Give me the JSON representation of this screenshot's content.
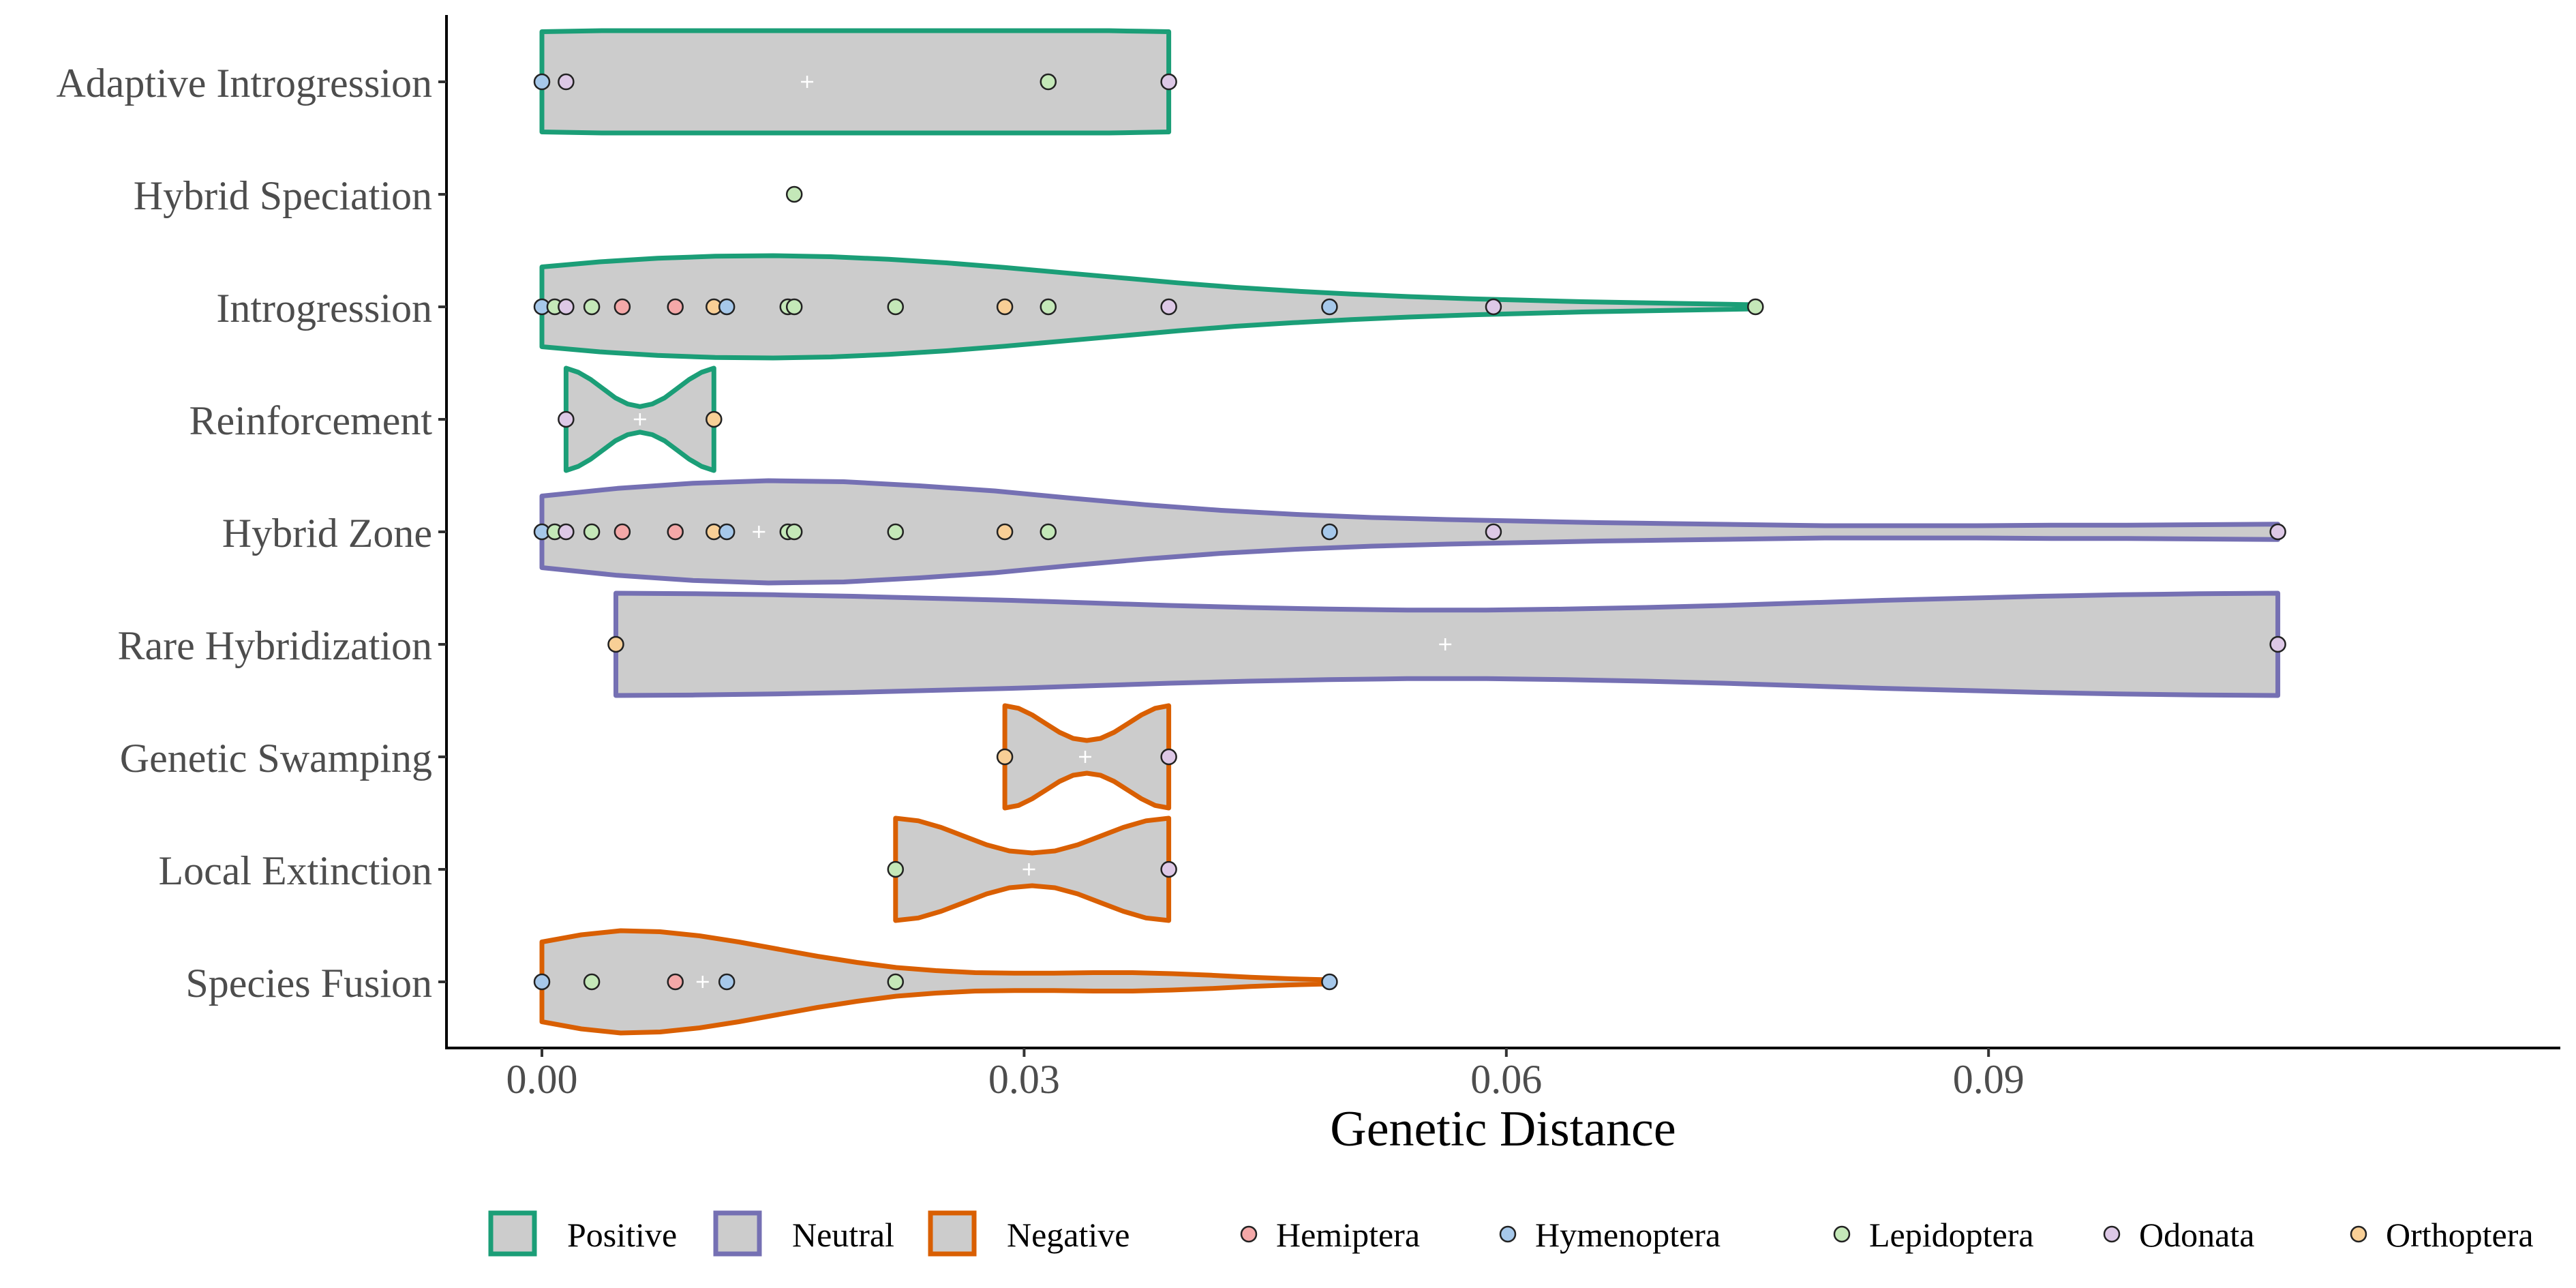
{
  "chart_data": {
    "type": "violin",
    "title": "",
    "xlabel": "Genetic Distance",
    "ylabel": "",
    "xlim": [
      -0.0055,
      0.1125
    ],
    "x_ticks": [
      0.0,
      0.03,
      0.06,
      0.09
    ],
    "x_tick_labels": [
      "0.00",
      "0.03",
      "0.06",
      "0.09"
    ],
    "grid": false,
    "legend_position": "bottom",
    "effect_legend": [
      {
        "name": "Positive",
        "color": "#1b9e77"
      },
      {
        "name": "Neutral",
        "color": "#7570b3"
      },
      {
        "name": "Negative",
        "color": "#d95f02"
      }
    ],
    "order_legend": [
      {
        "name": "Hemiptera",
        "color": "#f4a8a8"
      },
      {
        "name": "Hymenoptera",
        "color": "#a6c8ea"
      },
      {
        "name": "Lepidoptera",
        "color": "#c4e8b8"
      },
      {
        "name": "Odonata",
        "color": "#ddc8e6"
      },
      {
        "name": "Orthoptera",
        "color": "#f8cf96"
      }
    ],
    "categories": [
      {
        "label": "Adaptive Introgression",
        "effect": "Positive",
        "range": [
          0.0,
          0.039
        ],
        "mean": 0.0165,
        "shape": [
          0.98,
          0.99,
          1,
          1,
          1,
          1,
          1,
          1,
          1,
          1,
          1,
          1,
          1,
          1,
          1,
          1,
          1,
          1,
          1,
          1,
          0.99,
          0.98
        ],
        "points": [
          {
            "x": 0.0,
            "order": "Hymenoptera"
          },
          {
            "x": 0.0015,
            "order": "Odonata"
          },
          {
            "x": 0.0315,
            "order": "Lepidoptera"
          },
          {
            "x": 0.039,
            "order": "Odonata"
          }
        ]
      },
      {
        "label": "Hybrid Speciation",
        "effect": "Positive",
        "range": [
          0.0157,
          0.0157
        ],
        "mean": null,
        "shape": [],
        "points": [
          {
            "x": 0.0157,
            "order": "Lepidoptera"
          }
        ]
      },
      {
        "label": "Introgression",
        "effect": "Positive",
        "range": [
          0.0,
          0.0755
        ],
        "mean": null,
        "shape": [
          0.78,
          0.88,
          0.95,
          0.99,
          1,
          0.98,
          0.93,
          0.86,
          0.77,
          0.67,
          0.57,
          0.47,
          0.38,
          0.31,
          0.25,
          0.2,
          0.16,
          0.13,
          0.1,
          0.08,
          0.06,
          0.04
        ],
        "points": [
          {
            "x": 0.0,
            "order": "Hymenoptera"
          },
          {
            "x": 0.0008,
            "order": "Lepidoptera"
          },
          {
            "x": 0.0015,
            "order": "Odonata"
          },
          {
            "x": 0.0031,
            "order": "Lepidoptera"
          },
          {
            "x": 0.005,
            "order": "Hemiptera"
          },
          {
            "x": 0.0083,
            "order": "Hemiptera"
          },
          {
            "x": 0.0107,
            "order": "Orthoptera"
          },
          {
            "x": 0.0115,
            "order": "Hymenoptera"
          },
          {
            "x": 0.0153,
            "order": "Lepidoptera"
          },
          {
            "x": 0.0157,
            "order": "Lepidoptera"
          },
          {
            "x": 0.022,
            "order": "Lepidoptera"
          },
          {
            "x": 0.0288,
            "order": "Orthoptera"
          },
          {
            "x": 0.0315,
            "order": "Lepidoptera"
          },
          {
            "x": 0.039,
            "order": "Odonata"
          },
          {
            "x": 0.049,
            "order": "Hymenoptera"
          },
          {
            "x": 0.0592,
            "order": "Odonata"
          },
          {
            "x": 0.0755,
            "order": "Lepidoptera"
          }
        ]
      },
      {
        "label": "Reinforcement",
        "effect": "Positive",
        "range": [
          0.0015,
          0.0107
        ],
        "mean": 0.0061,
        "shape": [
          1,
          0.92,
          0.78,
          0.6,
          0.42,
          0.3,
          0.25,
          0.3,
          0.42,
          0.6,
          0.78,
          0.92,
          1
        ],
        "points": [
          {
            "x": 0.0015,
            "order": "Odonata"
          },
          {
            "x": 0.0107,
            "order": "Orthoptera"
          }
        ]
      },
      {
        "label": "Hybrid Zone",
        "effect": "Neutral",
        "range": [
          0.0,
          0.108
        ],
        "mean": 0.0135,
        "shape": [
          0.7,
          0.85,
          0.95,
          1,
          0.98,
          0.9,
          0.8,
          0.66,
          0.53,
          0.42,
          0.34,
          0.28,
          0.24,
          0.21,
          0.18,
          0.16,
          0.14,
          0.12,
          0.12,
          0.12,
          0.13,
          0.13,
          0.14,
          0.15
        ],
        "points": [
          {
            "x": 0.0,
            "order": "Hymenoptera"
          },
          {
            "x": 0.0008,
            "order": "Lepidoptera"
          },
          {
            "x": 0.0015,
            "order": "Odonata"
          },
          {
            "x": 0.0031,
            "order": "Lepidoptera"
          },
          {
            "x": 0.005,
            "order": "Hemiptera"
          },
          {
            "x": 0.0083,
            "order": "Hemiptera"
          },
          {
            "x": 0.0107,
            "order": "Orthoptera"
          },
          {
            "x": 0.0115,
            "order": "Hymenoptera"
          },
          {
            "x": 0.0153,
            "order": "Lepidoptera"
          },
          {
            "x": 0.0157,
            "order": "Lepidoptera"
          },
          {
            "x": 0.022,
            "order": "Lepidoptera"
          },
          {
            "x": 0.0288,
            "order": "Orthoptera"
          },
          {
            "x": 0.0315,
            "order": "Lepidoptera"
          },
          {
            "x": 0.049,
            "order": "Hymenoptera"
          },
          {
            "x": 0.0592,
            "order": "Odonata"
          },
          {
            "x": 0.108,
            "order": "Odonata"
          }
        ]
      },
      {
        "label": "Rare Hybridization",
        "effect": "Neutral",
        "range": [
          0.0046,
          0.108
        ],
        "mean": 0.0562,
        "shape": [
          1,
          0.99,
          0.97,
          0.94,
          0.9,
          0.86,
          0.81,
          0.76,
          0.72,
          0.69,
          0.67,
          0.67,
          0.69,
          0.72,
          0.76,
          0.81,
          0.86,
          0.9,
          0.94,
          0.97,
          0.99,
          1
        ],
        "points": [
          {
            "x": 0.0046,
            "order": "Orthoptera"
          },
          {
            "x": 0.108,
            "order": "Odonata"
          }
        ]
      },
      {
        "label": "Genetic Swamping",
        "effect": "Negative",
        "range": [
          0.0288,
          0.039
        ],
        "mean": 0.0338,
        "shape": [
          1,
          0.95,
          0.82,
          0.65,
          0.48,
          0.36,
          0.32,
          0.36,
          0.48,
          0.65,
          0.82,
          0.95,
          1
        ],
        "points": [
          {
            "x": 0.0288,
            "order": "Orthoptera"
          },
          {
            "x": 0.039,
            "order": "Odonata"
          }
        ]
      },
      {
        "label": "Local Extinction",
        "effect": "Negative",
        "range": [
          0.022,
          0.039
        ],
        "mean": 0.0303,
        "shape": [
          1,
          0.95,
          0.82,
          0.65,
          0.48,
          0.36,
          0.32,
          0.36,
          0.48,
          0.65,
          0.82,
          0.95,
          1
        ],
        "points": [
          {
            "x": 0.022,
            "order": "Lepidoptera"
          },
          {
            "x": 0.039,
            "order": "Odonata"
          }
        ]
      },
      {
        "label": "Species Fusion",
        "effect": "Negative",
        "range": [
          0.0,
          0.049
        ],
        "mean": 0.01,
        "shape": [
          0.78,
          0.92,
          1,
          0.98,
          0.9,
          0.78,
          0.64,
          0.5,
          0.38,
          0.28,
          0.22,
          0.18,
          0.17,
          0.17,
          0.18,
          0.18,
          0.16,
          0.13,
          0.09,
          0.06,
          0.04
        ],
        "points": [
          {
            "x": 0.0,
            "order": "Hymenoptera"
          },
          {
            "x": 0.0031,
            "order": "Lepidoptera"
          },
          {
            "x": 0.0083,
            "order": "Hemiptera"
          },
          {
            "x": 0.0115,
            "order": "Hymenoptera"
          },
          {
            "x": 0.022,
            "order": "Lepidoptera"
          },
          {
            "x": 0.049,
            "order": "Hymenoptera"
          }
        ]
      }
    ]
  }
}
